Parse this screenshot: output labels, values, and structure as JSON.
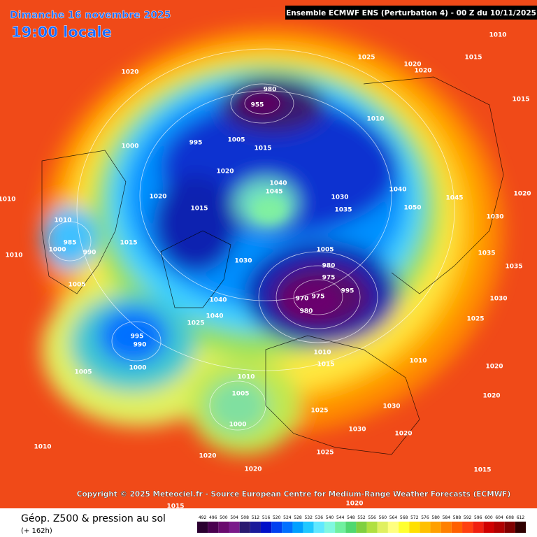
{
  "header": {
    "date": "Dimanche 16 novembre 2025",
    "time": "19:00 locale",
    "run": "Ensemble ECMWF ENS  (Perturbation 4)  -  00 Z du 10/11/2025"
  },
  "copyright": "Copyright © 2025 Meteociel.fr - Source European Centre for Medium-Range Weather Forecasts (ECMWF)",
  "footer": {
    "title": "Géop. Z500 & pression au sol",
    "lead": "(+ 162h)"
  },
  "legend": {
    "values": [
      492,
      496,
      500,
      504,
      508,
      512,
      516,
      520,
      524,
      528,
      532,
      536,
      540,
      544,
      548,
      552,
      556,
      560,
      564,
      568,
      572,
      576,
      580,
      584,
      588,
      592,
      596,
      600,
      604,
      608,
      612
    ],
    "colors": [
      "#2b0030",
      "#4a004f",
      "#6a0a6e",
      "#7a1a8a",
      "#2a1a70",
      "#1a1a9a",
      "#0010c8",
      "#0040f0",
      "#0070ff",
      "#00a0ff",
      "#20c8ff",
      "#60e8ff",
      "#80f8e0",
      "#70f0a0",
      "#50d870",
      "#80d040",
      "#b0e040",
      "#e0f060",
      "#ffff80",
      "#ffff30",
      "#ffe000",
      "#ffc000",
      "#ffa000",
      "#ff8000",
      "#ff6000",
      "#ff4010",
      "#f02010",
      "#d00000",
      "#b00000",
      "#800000",
      "#300000"
    ]
  },
  "isobars": [
    1010,
    1015,
    1025,
    1020,
    1020,
    1020,
    980,
    955,
    1010,
    1005,
    995,
    1000,
    1015,
    1020,
    1040,
    1045,
    1030,
    1035,
    1040,
    1050,
    1020,
    1015,
    1010,
    985,
    990,
    1000,
    1015,
    1030,
    1005,
    980,
    975,
    995,
    975,
    970,
    980,
    1040,
    1040,
    1025,
    995,
    990,
    1005,
    1000,
    1010,
    1015,
    1010,
    1005,
    1000,
    1025,
    1030,
    1020,
    1010,
    1015,
    1020,
    1025,
    1030,
    1020,
    1010,
    1020,
    1030,
    1035,
    1025,
    1045,
    1015,
    1020,
    1010,
    1010,
    1005,
    1020,
    1015,
    1020,
    1035,
    1030
  ]
}
